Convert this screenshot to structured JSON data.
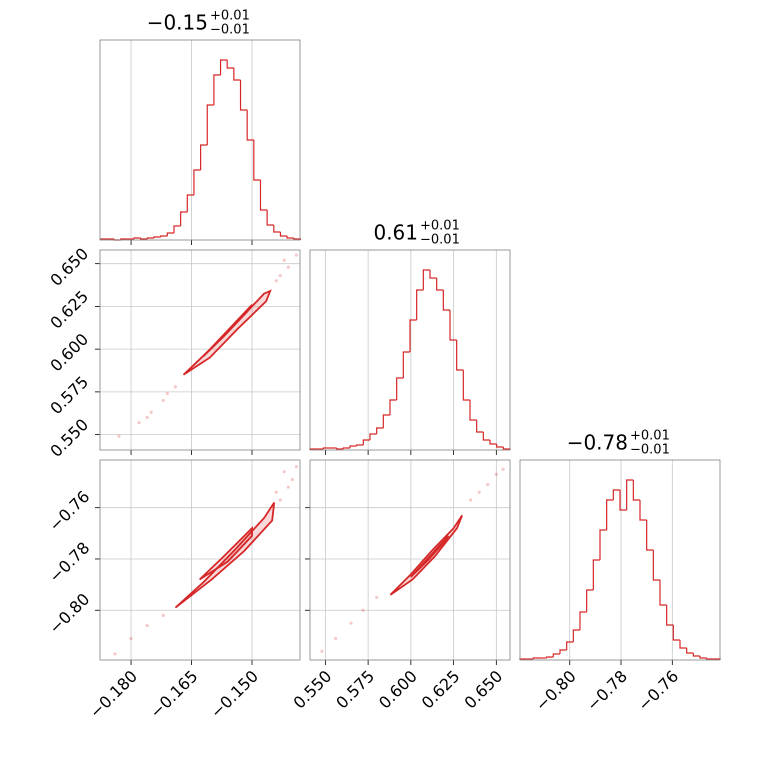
{
  "chart_data": {
    "type": "corner",
    "color": "#d62728",
    "grid": true,
    "params": [
      {
        "title": {
          "value": "−0.15",
          "plus": "+0.01",
          "minus": "−0.01"
        },
        "xlim": [
          -0.1877,
          -0.1381
        ],
        "xticks": [
          {
            "value": -0.18,
            "label": "−0.180"
          },
          {
            "value": -0.165,
            "label": "−0.165"
          },
          {
            "value": -0.15,
            "label": "−0.150"
          }
        ],
        "bins": [
          -0.1875,
          -0.18585,
          -0.1842,
          -0.18255,
          -0.1809,
          -0.17925,
          -0.1776,
          -0.17595,
          -0.1743,
          -0.17265,
          -0.171,
          -0.16935,
          -0.1677,
          -0.16605,
          -0.1644,
          -0.16275,
          -0.1611,
          -0.15945,
          -0.1578,
          -0.15615,
          -0.1545,
          -0.15285,
          -0.1512,
          -0.14955,
          -0.1479,
          -0.14625,
          -0.1446,
          -0.14295,
          -0.1413,
          -0.13965,
          -0.138
        ],
        "counts": [
          1,
          1,
          0,
          1,
          1,
          2,
          1,
          2,
          3,
          4,
          7,
          14,
          28,
          45,
          70,
          95,
          135,
          165,
          180,
          172,
          160,
          130,
          100,
          60,
          30,
          15,
          8,
          4,
          2,
          1
        ],
        "ylim": [
          0,
          200
        ]
      },
      {
        "title": {
          "value": "0.61",
          "plus": "+0.01",
          "minus": "−0.01"
        },
        "xlim": [
          0.541,
          0.658
        ],
        "xticks": [
          {
            "value": 0.55,
            "label": "0.550"
          },
          {
            "value": 0.575,
            "label": "0.575"
          },
          {
            "value": 0.6,
            "label": "0.600"
          },
          {
            "value": 0.625,
            "label": "0.625"
          },
          {
            "value": 0.65,
            "label": "0.650"
          }
        ],
        "bins": [
          0.541,
          0.5449,
          0.5488,
          0.5527,
          0.5566,
          0.5605,
          0.5644,
          0.5683,
          0.5722,
          0.5761,
          0.58,
          0.5839,
          0.5878,
          0.5917,
          0.5956,
          0.5995,
          0.6034,
          0.6073,
          0.6112,
          0.6151,
          0.619,
          0.6229,
          0.6268,
          0.6307,
          0.6346,
          0.6385,
          0.6424,
          0.6463,
          0.6502,
          0.6541,
          0.658
        ],
        "counts": [
          1,
          1,
          2,
          2,
          1,
          2,
          4,
          5,
          10,
          16,
          22,
          35,
          50,
          72,
          98,
          130,
          160,
          180,
          172,
          160,
          140,
          110,
          80,
          50,
          30,
          18,
          10,
          6,
          3,
          1
        ],
        "ylim": [
          0,
          200
        ]
      },
      {
        "title": {
          "value": "−0.78",
          "plus": "+0.01",
          "minus": "−0.01"
        },
        "xlim": [
          -0.8194,
          -0.7414
        ],
        "xticks": [
          {
            "value": -0.8,
            "label": "−0.80"
          },
          {
            "value": -0.78,
            "label": "−0.78"
          },
          {
            "value": -0.76,
            "label": "−0.76"
          }
        ],
        "bins": [
          -0.8194,
          -0.8168,
          -0.8142,
          -0.8116,
          -0.809,
          -0.8064,
          -0.8038,
          -0.8012,
          -0.7986,
          -0.796,
          -0.7934,
          -0.7908,
          -0.7882,
          -0.7856,
          -0.783,
          -0.7804,
          -0.7778,
          -0.7752,
          -0.7726,
          -0.77,
          -0.7674,
          -0.7648,
          -0.7622,
          -0.7596,
          -0.757,
          -0.7544,
          -0.7518,
          -0.7492,
          -0.7466,
          -0.744,
          -0.7414
        ],
        "counts": [
          1,
          1,
          2,
          2,
          3,
          6,
          10,
          18,
          30,
          48,
          70,
          100,
          130,
          160,
          170,
          150,
          180,
          160,
          140,
          110,
          80,
          55,
          35,
          20,
          12,
          7,
          4,
          2,
          1,
          1
        ],
        "ylim": [
          0,
          200
        ]
      }
    ],
    "pairs": [
      {
        "x_param": 0,
        "y_param": 1,
        "contours": [
          {
            "x": [
              -0.167,
              -0.161,
              -0.154,
              -0.147,
              -0.1455,
              -0.1465,
              -0.1535,
              -0.1605,
              -0.167
            ],
            "y": [
              0.585,
              0.5985,
              0.615,
              0.6325,
              0.634,
              0.628,
              0.612,
              0.595,
              0.585
            ]
          },
          {
            "x": [
              -0.162,
              -0.156,
              -0.15,
              -0.151,
              -0.157,
              -0.162
            ],
            "y": [
              0.596,
              0.611,
              0.626,
              0.6225,
              0.6075,
              0.596
            ]
          }
        ],
        "points": {
          "x": [
            -0.183,
            -0.178,
            -0.176,
            -0.175,
            -0.172,
            -0.171,
            -0.169,
            -0.144,
            -0.143,
            -0.141,
            -0.142,
            -0.139
          ],
          "y": [
            0.549,
            0.557,
            0.56,
            0.563,
            0.57,
            0.574,
            0.578,
            0.64,
            0.643,
            0.648,
            0.652,
            0.655
          ]
        }
      },
      {
        "x_param": 0,
        "y_param": 2,
        "contours": [
          {
            "x": [
              -0.169,
              -0.162,
              -0.154,
              -0.147,
              -0.1445,
              -0.145,
              -0.152,
              -0.16,
              -0.169
            ],
            "y": [
              -0.799,
              -0.789,
              -0.776,
              -0.764,
              -0.758,
              -0.765,
              -0.777,
              -0.788,
              -0.799
            ]
          },
          {
            "x": [
              -0.163,
              -0.157,
              -0.15,
              -0.15,
              -0.156,
              -0.163
            ],
            "y": [
              -0.788,
              -0.779,
              -0.768,
              -0.771,
              -0.781,
              -0.788
            ]
          }
        ],
        "points": {
          "x": [
            -0.184,
            -0.18,
            -0.176,
            -0.172,
            -0.144,
            -0.143,
            -0.141,
            -0.14,
            -0.142,
            -0.139
          ],
          "y": [
            -0.817,
            -0.811,
            -0.806,
            -0.802,
            -0.754,
            -0.757,
            -0.752,
            -0.749,
            -0.746,
            -0.744
          ]
        }
      },
      {
        "x_param": 1,
        "y_param": 2,
        "contours": [
          {
            "x": [
              0.588,
              0.6,
              0.612,
              0.625,
              0.63,
              0.627,
              0.614,
              0.601,
              0.588
            ],
            "y": [
              -0.794,
              -0.786,
              -0.777,
              -0.768,
              -0.763,
              -0.768,
              -0.779,
              -0.788,
              -0.794
            ]
          },
          {
            "x": [
              0.6,
              0.611,
              0.622,
              0.62,
              0.61,
              0.6
            ],
            "y": [
              -0.787,
              -0.779,
              -0.771,
              -0.773,
              -0.7805,
              -0.787
            ]
          }
        ],
        "points": {
          "x": [
            0.548,
            0.556,
            0.565,
            0.572,
            0.58,
            0.635,
            0.64,
            0.645,
            0.65,
            0.654
          ],
          "y": [
            -0.816,
            -0.811,
            -0.805,
            -0.8,
            -0.795,
            -0.757,
            -0.754,
            -0.751,
            -0.747,
            -0.745
          ]
        }
      }
    ]
  }
}
